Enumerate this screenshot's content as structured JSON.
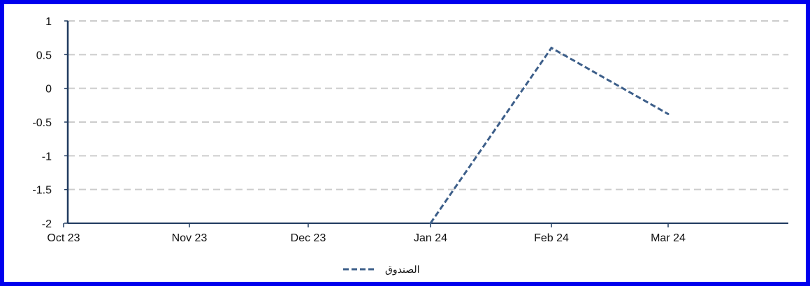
{
  "chart_data": {
    "type": "line",
    "x": [
      "Oct 23",
      "Nov 23",
      "Dec 23",
      "Jan 24",
      "Feb 24",
      "Mar 24"
    ],
    "series": [
      {
        "name": "الصندوق",
        "values": [
          null,
          null,
          null,
          -2.0,
          0.6,
          -0.38
        ],
        "color": "#3d5f8a",
        "dash": true
      }
    ],
    "yticks": [
      "1",
      "0.5",
      "0",
      "-0.5",
      "-1",
      "-1.5",
      "-2"
    ],
    "ylim": [
      -2,
      1
    ],
    "grid": true,
    "legend_position": "bottom-center",
    "colors": {
      "frame": "#0000ee",
      "grid": "#cccccc",
      "axis": "#1f3a5f",
      "line": "#3d5f8a"
    }
  }
}
